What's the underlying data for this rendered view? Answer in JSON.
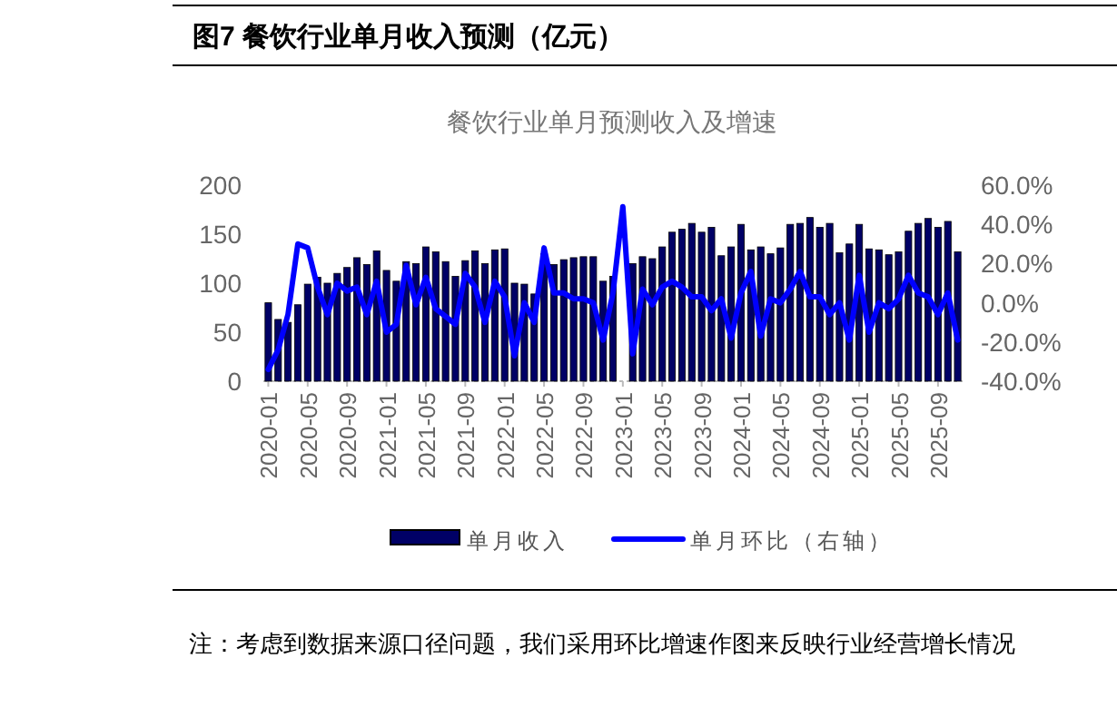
{
  "chart_data": {
    "type": "bar",
    "title": "图7  餐饮行业单月收入预测（亿元）",
    "subtitle": "餐饮行业单月预测收入及增速",
    "categories": [
      "2020-01",
      null,
      null,
      null,
      "2020-05",
      null,
      null,
      null,
      "2020-09",
      null,
      null,
      null,
      "2021-01",
      null,
      null,
      null,
      "2021-05",
      null,
      null,
      null,
      "2021-09",
      null,
      null,
      null,
      "2022-01",
      null,
      null,
      null,
      "2022-05",
      null,
      null,
      null,
      "2022-09",
      null,
      null,
      null,
      "2023-01",
      null,
      null,
      null,
      "2023-05",
      null,
      null,
      null,
      "2023-09",
      null,
      null,
      null,
      "2024-01",
      null,
      null,
      null,
      "2024-05",
      null,
      null,
      null,
      "2024-09",
      null,
      null,
      null,
      "2025-01",
      null,
      null,
      null,
      "2025-05",
      null,
      null,
      null,
      "2025-09",
      null,
      null
    ],
    "series": [
      {
        "name": "单月收入",
        "color": "#000066",
        "values": [
          80,
          63,
          60,
          78,
          99,
          106,
          100,
          110,
          116,
          126,
          119,
          133,
          113,
          102,
          122,
          120,
          137,
          132,
          122,
          107,
          123,
          133,
          120,
          134,
          135,
          100,
          99,
          89,
          130,
          119,
          124,
          126,
          127,
          127,
          102,
          107,
          null,
          120,
          127,
          125,
          137,
          152,
          155,
          161,
          152,
          157,
          128,
          137,
          160,
          134,
          137,
          130,
          136,
          160,
          161,
          167,
          157,
          161,
          131,
          140,
          160,
          135,
          134,
          129,
          132,
          153,
          161,
          166,
          157,
          163,
          132
        ]
      },
      {
        "name": "单月环比（右轴）",
        "type": "line",
        "axis": "y2",
        "color": "#0000ff",
        "values": [
          -34,
          -24,
          -6,
          30,
          28,
          8,
          -6,
          10,
          6,
          8,
          -6,
          11,
          -15,
          -11,
          19,
          -1,
          13,
          -3,
          -7,
          -11,
          15,
          8,
          -10,
          11,
          3,
          -27,
          0,
          -10,
          28,
          5,
          5,
          2,
          2,
          0,
          -19,
          5,
          49,
          -26,
          7,
          -1,
          8,
          11,
          8,
          3,
          3,
          -4,
          2,
          -18,
          5,
          16,
          -17,
          2,
          0,
          7,
          16,
          3,
          3,
          -6,
          0,
          -19,
          14,
          -15,
          0,
          -3,
          2,
          14,
          5,
          3,
          -6,
          5,
          -19
        ]
      }
    ],
    "ylim": [
      0,
      200
    ],
    "yticks": [
      0,
      50,
      100,
      150,
      200
    ],
    "y2lim": [
      -40,
      60
    ],
    "y2ticks": [
      {
        "value": -40,
        "label": "-40.0%"
      },
      {
        "value": -20,
        "label": "-20.0%"
      },
      {
        "value": 0,
        "label": "0.0%"
      },
      {
        "value": 20,
        "label": "20.0%"
      },
      {
        "value": 40,
        "label": "40.0%"
      },
      {
        "value": 60,
        "label": "60.0%"
      }
    ],
    "legend": "bottom",
    "annotations": [
      "注：考虑到数据来源口径问题，我们采用环比增速作图来反映行业经营增长情况"
    ]
  }
}
